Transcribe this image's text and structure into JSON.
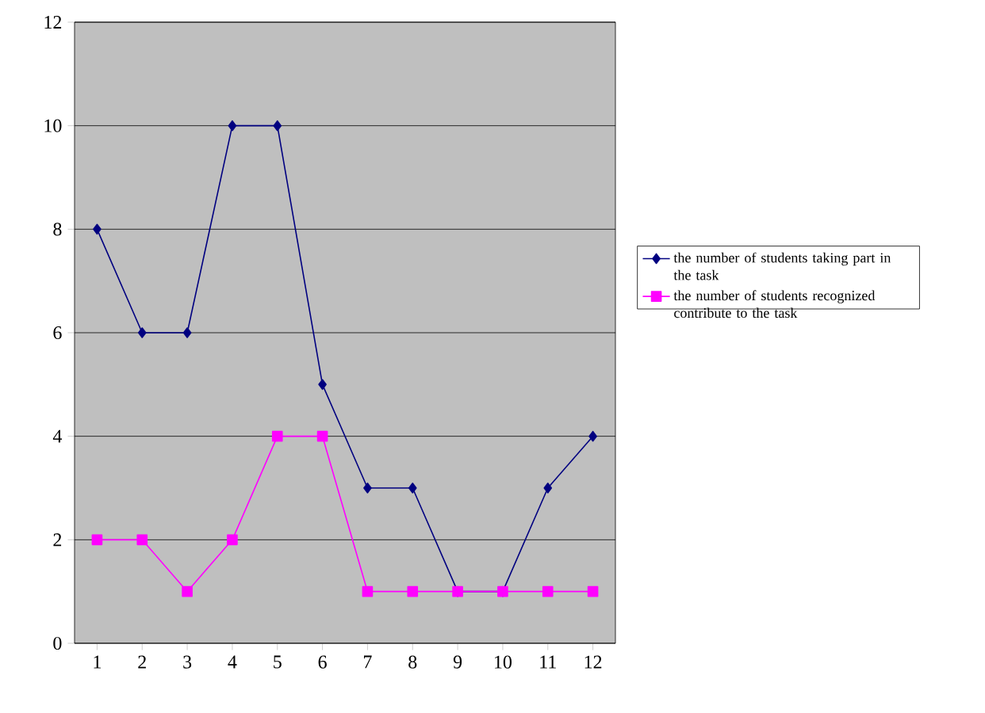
{
  "chart_data": {
    "type": "line",
    "categories": [
      "1",
      "2",
      "3",
      "4",
      "5",
      "6",
      "7",
      "8",
      "9",
      "10",
      "11",
      "12"
    ],
    "series": [
      {
        "name": "the number of students taking part in the task",
        "color": "#000080",
        "marker": "diamond",
        "values": [
          8,
          6,
          6,
          10,
          10,
          5,
          3,
          3,
          1,
          1,
          3,
          4
        ]
      },
      {
        "name": "the number of students recognized contribute to the task",
        "color": "#ff00ff",
        "marker": "square",
        "values": [
          2,
          2,
          1,
          2,
          4,
          4,
          1,
          1,
          1,
          1,
          1,
          1
        ]
      }
    ],
    "ylim": [
      0,
      12
    ],
    "yticks": [
      0,
      2,
      4,
      6,
      8,
      10,
      12
    ],
    "grid": "y",
    "legend": "right"
  }
}
